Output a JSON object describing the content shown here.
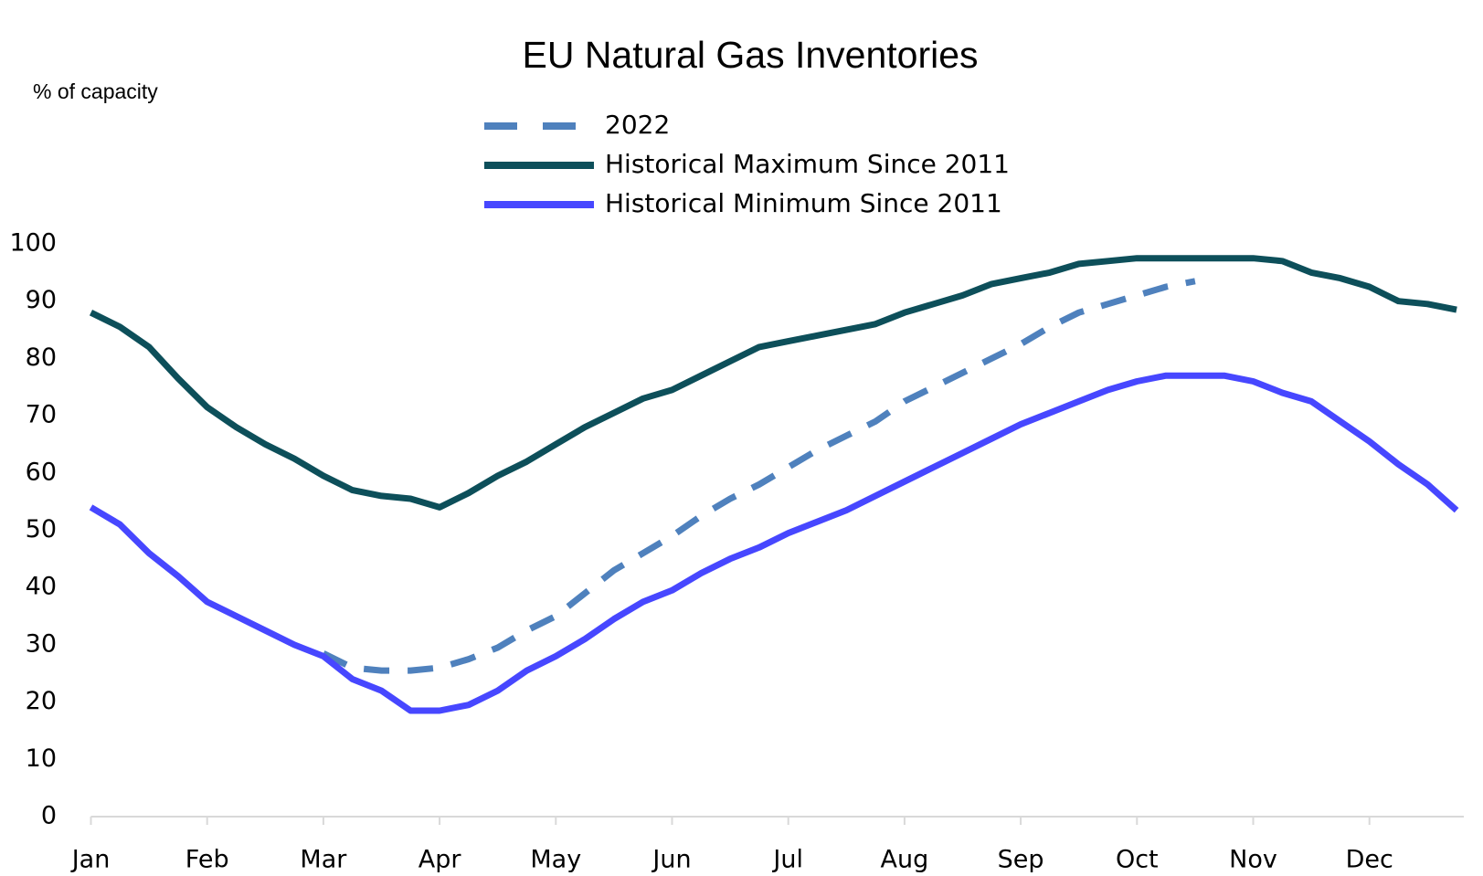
{
  "chart_data": {
    "type": "line",
    "title": "EU Natural Gas Inventories",
    "y_label": "% of capacity",
    "categories": [
      "Jan",
      null,
      null,
      null,
      "Feb",
      null,
      null,
      null,
      "Mar",
      null,
      null,
      null,
      "Apr",
      null,
      null,
      null,
      "May",
      null,
      null,
      null,
      "Jun",
      null,
      null,
      null,
      "Jul",
      null,
      null,
      null,
      "Aug",
      null,
      null,
      null,
      "Sep",
      null,
      null,
      null,
      "Oct",
      null,
      null,
      null,
      "Nov",
      null,
      null,
      null,
      "Dec",
      null,
      null,
      null
    ],
    "series": [
      {
        "name": "2022",
        "color": "#4f81bd",
        "dashed": true,
        "values": [
          null,
          null,
          null,
          null,
          null,
          null,
          null,
          null,
          28.5,
          26,
          25.5,
          25.5,
          26,
          27.5,
          29.5,
          32.5,
          35,
          39,
          43,
          46,
          49,
          52.5,
          55.5,
          58,
          61,
          64,
          66.5,
          69,
          72.5,
          75,
          77.5,
          80,
          82.5,
          85.5,
          88,
          89.5,
          91,
          92.5,
          93.5,
          null,
          null,
          null,
          null,
          null,
          null,
          null,
          null,
          null
        ]
      },
      {
        "name": "Historical Maximum Since 2011",
        "color": "#0d4f5a",
        "dashed": false,
        "values": [
          88,
          85.5,
          82,
          76.5,
          71.5,
          68,
          65,
          62.5,
          59.5,
          57,
          56,
          55.5,
          54,
          56.5,
          59.5,
          62,
          65,
          68,
          70.5,
          73,
          74.5,
          77,
          79.5,
          82,
          83,
          84,
          85,
          86,
          88,
          89.5,
          91,
          93,
          94,
          95,
          96.5,
          97,
          97.5,
          97.5,
          97.5,
          97.5,
          97.5,
          97,
          95,
          94,
          92.5,
          90,
          89.5,
          88.5
        ]
      },
      {
        "name": "Historical Minimum Since 2011",
        "color": "#4747ff",
        "dashed": false,
        "values": [
          54,
          51,
          46,
          42,
          37.5,
          35,
          32.5,
          30,
          28,
          24,
          22,
          18.5,
          18.5,
          19.5,
          22,
          25.5,
          28,
          31,
          34.5,
          37.5,
          39.5,
          42.5,
          45,
          47,
          49.5,
          51.5,
          53.5,
          56,
          58.5,
          61,
          63.5,
          66,
          68.5,
          70.5,
          72.5,
          74.5,
          76,
          77,
          77,
          77,
          76,
          74,
          72.5,
          69,
          65.5,
          61.5,
          58,
          53.5
        ]
      }
    ],
    "ylim": [
      0,
      100
    ],
    "yticks": [
      0,
      10,
      20,
      30,
      40,
      50,
      60,
      70,
      80,
      90,
      100
    ],
    "grid": false,
    "legend": "top"
  }
}
